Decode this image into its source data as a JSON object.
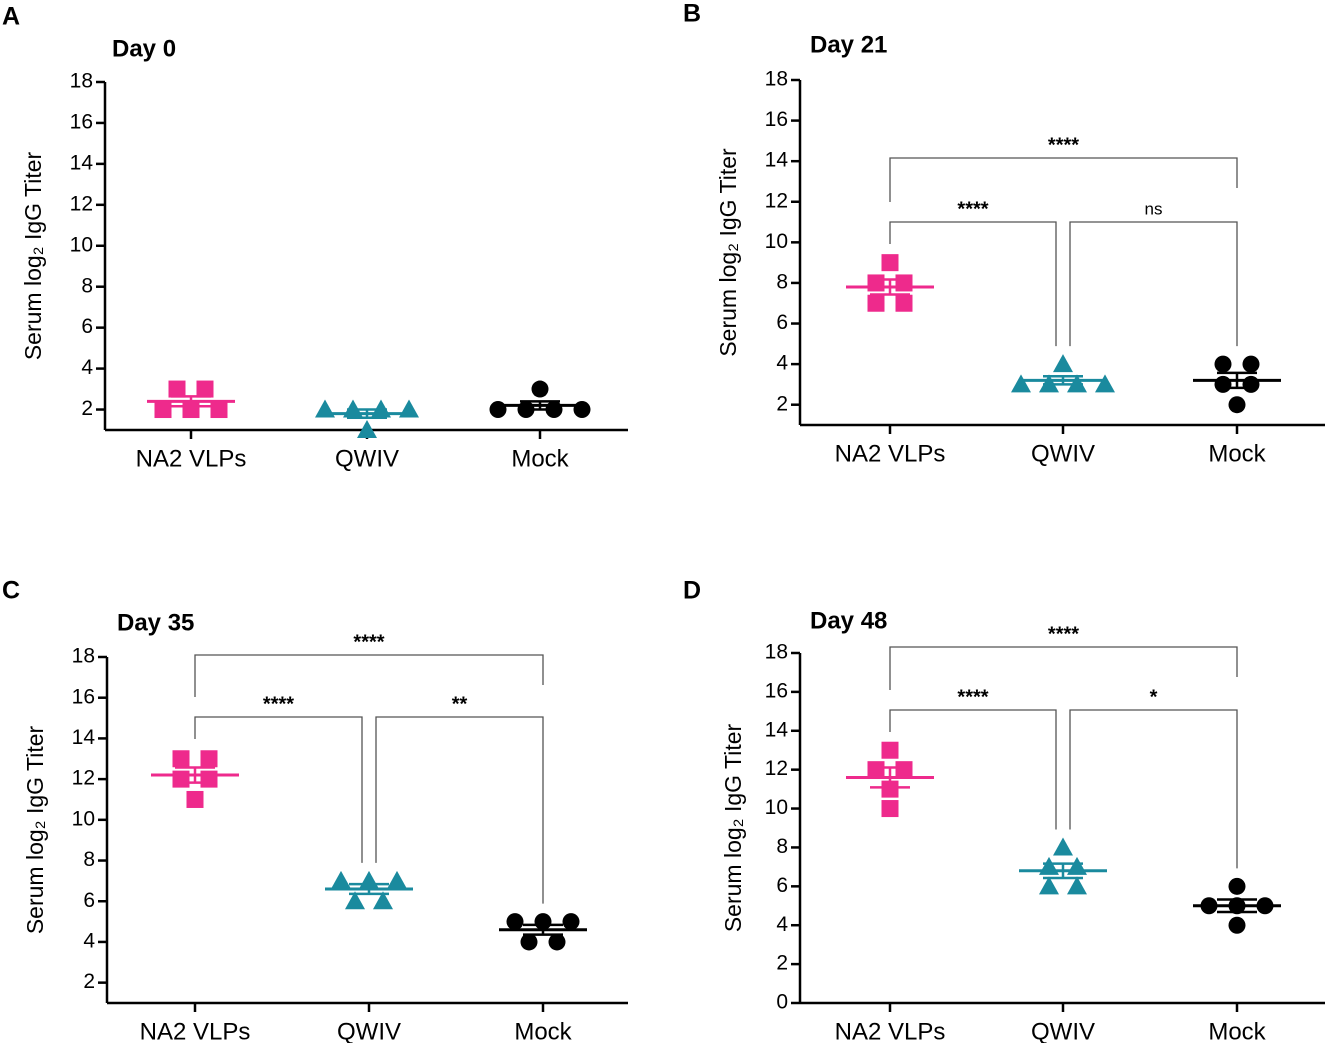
{
  "chart_data": [
    {
      "type": "dot",
      "panel": "A",
      "title": "Day 0",
      "y_label": "Serum log₂ IgG Titer",
      "categories": [
        "NA2 VLPs",
        "QWIV",
        "Mock"
      ],
      "values": [
        [
          3,
          3,
          2,
          2,
          2
        ],
        [
          2,
          2,
          2,
          2,
          1
        ],
        [
          3,
          2,
          2,
          2,
          2
        ]
      ],
      "means": [
        2.4,
        1.8,
        2.2
      ],
      "errors": [
        0.24,
        0.2,
        0.2
      ],
      "colors": [
        "#ee2a8c",
        "#1a8a9e",
        "#000000"
      ],
      "markers": [
        "square",
        "triangle",
        "circle"
      ],
      "ylim": [
        1,
        18
      ],
      "yticks": [
        2,
        4,
        6,
        8,
        10,
        12,
        14,
        16,
        18
      ],
      "annotations": []
    },
    {
      "type": "dot",
      "panel": "B",
      "title": "Day 21",
      "y_label": "Serum log₂ IgG Titer",
      "categories": [
        "NA2 VLPs",
        "QWIV",
        "Mock"
      ],
      "values": [
        [
          9,
          8,
          8,
          7,
          7
        ],
        [
          4,
          3,
          3,
          3,
          3
        ],
        [
          4,
          4,
          3,
          3,
          2
        ]
      ],
      "means": [
        7.8,
        3.2,
        3.2
      ],
      "errors": [
        0.37,
        0.2,
        0.37
      ],
      "colors": [
        "#ee2a8c",
        "#1a8a9e",
        "#000000"
      ],
      "markers": [
        "square",
        "triangle",
        "circle"
      ],
      "ylim": [
        1,
        18
      ],
      "yticks": [
        2,
        4,
        6,
        8,
        10,
        12,
        14,
        16,
        18
      ],
      "annotations": [
        "****",
        "****",
        "ns"
      ]
    },
    {
      "type": "dot",
      "panel": "C",
      "title": "Day 35",
      "y_label": "Serum log₂ IgG Titer",
      "categories": [
        "NA2 VLPs",
        "QWIV",
        "Mock"
      ],
      "values": [
        [
          13,
          13,
          12,
          12,
          11
        ],
        [
          7,
          7,
          7,
          6,
          6
        ],
        [
          5,
          5,
          5,
          4,
          4
        ]
      ],
      "means": [
        12.2,
        6.6,
        4.6
      ],
      "errors": [
        0.37,
        0.24,
        0.24
      ],
      "colors": [
        "#ee2a8c",
        "#1a8a9e",
        "#000000"
      ],
      "markers": [
        "square",
        "triangle",
        "circle"
      ],
      "ylim": [
        1,
        18
      ],
      "yticks": [
        2,
        4,
        6,
        8,
        10,
        12,
        14,
        16,
        18
      ],
      "annotations": [
        "****",
        "****",
        "**"
      ]
    },
    {
      "type": "dot",
      "panel": "D",
      "title": "Day 48",
      "y_label": "Serum log₂ IgG Titer",
      "categories": [
        "NA2 VLPs",
        "QWIV",
        "Mock"
      ],
      "values": [
        [
          13,
          12,
          12,
          11,
          10
        ],
        [
          8,
          7,
          7,
          6,
          6
        ],
        [
          6,
          5,
          5,
          5,
          4
        ]
      ],
      "means": [
        11.6,
        6.8,
        5
      ],
      "errors": [
        0.51,
        0.37,
        0.32
      ],
      "colors": [
        "#ee2a8c",
        "#1a8a9e",
        "#000000"
      ],
      "markers": [
        "square",
        "triangle",
        "circle"
      ],
      "ylim": [
        0,
        18
      ],
      "yticks": [
        0,
        2,
        4,
        6,
        8,
        10,
        12,
        14,
        16,
        18
      ],
      "annotations": [
        "****",
        "****",
        "*"
      ]
    }
  ]
}
